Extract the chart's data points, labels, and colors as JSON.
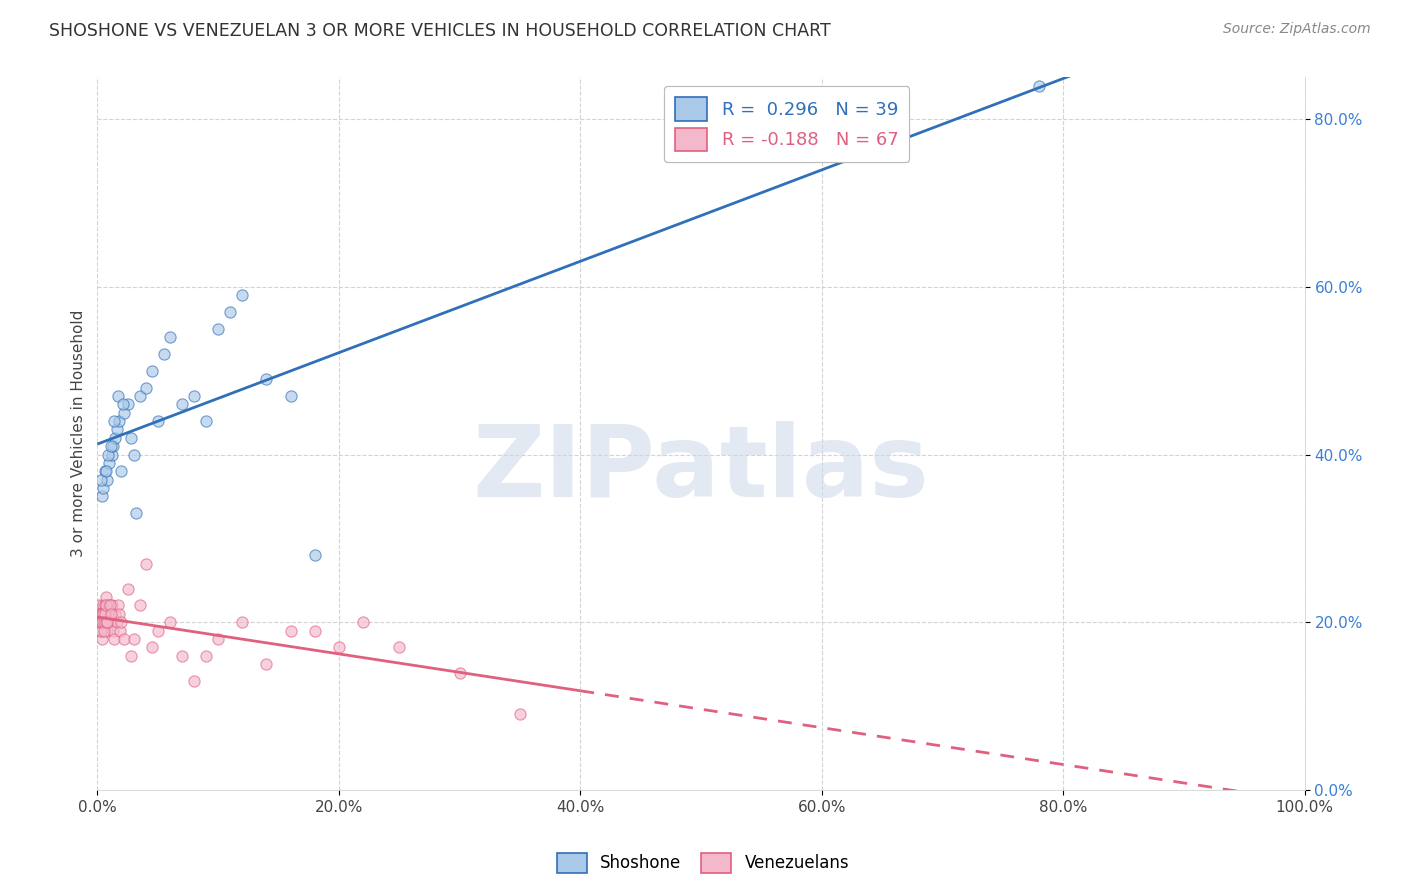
{
  "title": "SHOSHONE VS VENEZUELAN 3 OR MORE VEHICLES IN HOUSEHOLD CORRELATION CHART",
  "source": "Source: ZipAtlas.com",
  "ylabel": "3 or more Vehicles in Household",
  "watermark_text": "ZIPatlas",
  "legend_shoshone_color": "#aac8e8",
  "legend_shoshone_edge": "#3070b8",
  "legend_venezuelan_color": "#f4b8cc",
  "legend_venezuelan_edge": "#e06080",
  "R_shoshone": 0.296,
  "N_shoshone": 39,
  "R_venezuelan": -0.188,
  "N_venezuelan": 67,
  "shoshone_x": [
    0.4,
    0.5,
    0.6,
    0.8,
    1.0,
    1.2,
    1.3,
    1.5,
    1.6,
    1.8,
    2.0,
    2.2,
    2.5,
    2.8,
    3.0,
    3.5,
    4.0,
    4.5,
    5.0,
    5.5,
    6.0,
    7.0,
    8.0,
    9.0,
    10.0,
    11.0,
    12.0,
    14.0,
    16.0,
    18.0,
    0.3,
    0.7,
    0.9,
    1.1,
    1.4,
    1.7,
    2.1,
    3.2,
    78.0
  ],
  "shoshone_y": [
    35.0,
    36.0,
    38.0,
    37.0,
    39.0,
    40.0,
    41.0,
    42.0,
    43.0,
    44.0,
    38.0,
    45.0,
    46.0,
    42.0,
    40.0,
    47.0,
    48.0,
    50.0,
    44.0,
    52.0,
    54.0,
    46.0,
    47.0,
    44.0,
    55.0,
    57.0,
    59.0,
    49.0,
    47.0,
    28.0,
    37.0,
    38.0,
    40.0,
    41.0,
    44.0,
    47.0,
    46.0,
    33.0,
    84.0
  ],
  "venezuelan_x": [
    0.1,
    0.15,
    0.2,
    0.25,
    0.3,
    0.35,
    0.4,
    0.45,
    0.5,
    0.55,
    0.6,
    0.65,
    0.7,
    0.75,
    0.8,
    0.85,
    0.9,
    0.95,
    1.0,
    1.1,
    1.2,
    1.3,
    1.4,
    1.5,
    1.6,
    1.7,
    1.8,
    1.9,
    2.0,
    2.2,
    2.5,
    2.8,
    3.0,
    3.5,
    4.0,
    4.5,
    5.0,
    6.0,
    7.0,
    8.0,
    9.0,
    10.0,
    12.0,
    14.0,
    16.0,
    18.0,
    20.0,
    22.0,
    25.0,
    30.0,
    35.0,
    0.12,
    0.18,
    0.22,
    0.28,
    0.32,
    0.38,
    0.42,
    0.48,
    0.52,
    0.58,
    0.62,
    0.68,
    0.72,
    0.78,
    1.05,
    1.15
  ],
  "venezuelan_y": [
    22.0,
    21.0,
    20.0,
    21.0,
    19.0,
    18.0,
    20.0,
    22.0,
    21.0,
    20.0,
    22.0,
    21.0,
    23.0,
    20.0,
    19.0,
    21.0,
    20.0,
    22.0,
    21.0,
    20.0,
    22.0,
    19.0,
    18.0,
    21.0,
    20.0,
    22.0,
    21.0,
    19.0,
    20.0,
    18.0,
    24.0,
    16.0,
    18.0,
    22.0,
    27.0,
    17.0,
    19.0,
    20.0,
    16.0,
    13.0,
    16.0,
    18.0,
    20.0,
    15.0,
    19.0,
    19.0,
    17.0,
    20.0,
    17.0,
    14.0,
    9.0,
    21.0,
    20.0,
    21.0,
    19.0,
    20.0,
    21.0,
    20.0,
    21.0,
    20.0,
    19.0,
    21.0,
    20.0,
    22.0,
    20.0,
    22.0,
    21.0
  ],
  "xlim": [
    0,
    100
  ],
  "ylim": [
    0,
    85
  ],
  "xticks": [
    0,
    20,
    40,
    60,
    80,
    100
  ],
  "yticks": [
    0,
    20,
    40,
    60,
    80
  ],
  "background_color": "#ffffff",
  "grid_color": "#c8c8c8",
  "title_fontsize": 12.5,
  "source_fontsize": 10,
  "tick_fontsize": 11,
  "legend_fontsize": 13,
  "ylabel_fontsize": 11,
  "marker_size": 65,
  "marker_alpha": 0.65,
  "line_width": 2.0,
  "vz_solid_end": 40.0
}
